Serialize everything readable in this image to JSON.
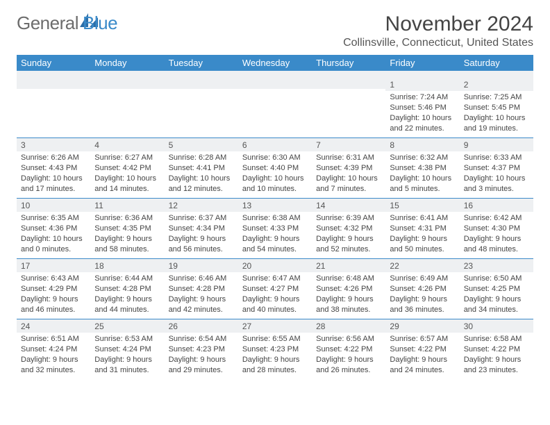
{
  "brand": {
    "part1": "General",
    "part2": "Blue",
    "logo_color": "#2b6ea8"
  },
  "header": {
    "month_title": "November 2024",
    "location": "Collinsville, Connecticut, United States"
  },
  "colors": {
    "header_bar": "#3a8ac9",
    "band": "#eef0f2",
    "rule": "#3a8ac9",
    "text": "#444444"
  },
  "weekdays": [
    "Sunday",
    "Monday",
    "Tuesday",
    "Wednesday",
    "Thursday",
    "Friday",
    "Saturday"
  ],
  "weeks": [
    [
      {
        "n": "",
        "lines": []
      },
      {
        "n": "",
        "lines": []
      },
      {
        "n": "",
        "lines": []
      },
      {
        "n": "",
        "lines": []
      },
      {
        "n": "",
        "lines": []
      },
      {
        "n": "1",
        "lines": [
          "Sunrise: 7:24 AM",
          "Sunset: 5:46 PM",
          "Daylight: 10 hours",
          "and 22 minutes."
        ]
      },
      {
        "n": "2",
        "lines": [
          "Sunrise: 7:25 AM",
          "Sunset: 5:45 PM",
          "Daylight: 10 hours",
          "and 19 minutes."
        ]
      }
    ],
    [
      {
        "n": "3",
        "lines": [
          "Sunrise: 6:26 AM",
          "Sunset: 4:43 PM",
          "Daylight: 10 hours",
          "and 17 minutes."
        ]
      },
      {
        "n": "4",
        "lines": [
          "Sunrise: 6:27 AM",
          "Sunset: 4:42 PM",
          "Daylight: 10 hours",
          "and 14 minutes."
        ]
      },
      {
        "n": "5",
        "lines": [
          "Sunrise: 6:28 AM",
          "Sunset: 4:41 PM",
          "Daylight: 10 hours",
          "and 12 minutes."
        ]
      },
      {
        "n": "6",
        "lines": [
          "Sunrise: 6:30 AM",
          "Sunset: 4:40 PM",
          "Daylight: 10 hours",
          "and 10 minutes."
        ]
      },
      {
        "n": "7",
        "lines": [
          "Sunrise: 6:31 AM",
          "Sunset: 4:39 PM",
          "Daylight: 10 hours",
          "and 7 minutes."
        ]
      },
      {
        "n": "8",
        "lines": [
          "Sunrise: 6:32 AM",
          "Sunset: 4:38 PM",
          "Daylight: 10 hours",
          "and 5 minutes."
        ]
      },
      {
        "n": "9",
        "lines": [
          "Sunrise: 6:33 AM",
          "Sunset: 4:37 PM",
          "Daylight: 10 hours",
          "and 3 minutes."
        ]
      }
    ],
    [
      {
        "n": "10",
        "lines": [
          "Sunrise: 6:35 AM",
          "Sunset: 4:36 PM",
          "Daylight: 10 hours",
          "and 0 minutes."
        ]
      },
      {
        "n": "11",
        "lines": [
          "Sunrise: 6:36 AM",
          "Sunset: 4:35 PM",
          "Daylight: 9 hours",
          "and 58 minutes."
        ]
      },
      {
        "n": "12",
        "lines": [
          "Sunrise: 6:37 AM",
          "Sunset: 4:34 PM",
          "Daylight: 9 hours",
          "and 56 minutes."
        ]
      },
      {
        "n": "13",
        "lines": [
          "Sunrise: 6:38 AM",
          "Sunset: 4:33 PM",
          "Daylight: 9 hours",
          "and 54 minutes."
        ]
      },
      {
        "n": "14",
        "lines": [
          "Sunrise: 6:39 AM",
          "Sunset: 4:32 PM",
          "Daylight: 9 hours",
          "and 52 minutes."
        ]
      },
      {
        "n": "15",
        "lines": [
          "Sunrise: 6:41 AM",
          "Sunset: 4:31 PM",
          "Daylight: 9 hours",
          "and 50 minutes."
        ]
      },
      {
        "n": "16",
        "lines": [
          "Sunrise: 6:42 AM",
          "Sunset: 4:30 PM",
          "Daylight: 9 hours",
          "and 48 minutes."
        ]
      }
    ],
    [
      {
        "n": "17",
        "lines": [
          "Sunrise: 6:43 AM",
          "Sunset: 4:29 PM",
          "Daylight: 9 hours",
          "and 46 minutes."
        ]
      },
      {
        "n": "18",
        "lines": [
          "Sunrise: 6:44 AM",
          "Sunset: 4:28 PM",
          "Daylight: 9 hours",
          "and 44 minutes."
        ]
      },
      {
        "n": "19",
        "lines": [
          "Sunrise: 6:46 AM",
          "Sunset: 4:28 PM",
          "Daylight: 9 hours",
          "and 42 minutes."
        ]
      },
      {
        "n": "20",
        "lines": [
          "Sunrise: 6:47 AM",
          "Sunset: 4:27 PM",
          "Daylight: 9 hours",
          "and 40 minutes."
        ]
      },
      {
        "n": "21",
        "lines": [
          "Sunrise: 6:48 AM",
          "Sunset: 4:26 PM",
          "Daylight: 9 hours",
          "and 38 minutes."
        ]
      },
      {
        "n": "22",
        "lines": [
          "Sunrise: 6:49 AM",
          "Sunset: 4:26 PM",
          "Daylight: 9 hours",
          "and 36 minutes."
        ]
      },
      {
        "n": "23",
        "lines": [
          "Sunrise: 6:50 AM",
          "Sunset: 4:25 PM",
          "Daylight: 9 hours",
          "and 34 minutes."
        ]
      }
    ],
    [
      {
        "n": "24",
        "lines": [
          "Sunrise: 6:51 AM",
          "Sunset: 4:24 PM",
          "Daylight: 9 hours",
          "and 32 minutes."
        ]
      },
      {
        "n": "25",
        "lines": [
          "Sunrise: 6:53 AM",
          "Sunset: 4:24 PM",
          "Daylight: 9 hours",
          "and 31 minutes."
        ]
      },
      {
        "n": "26",
        "lines": [
          "Sunrise: 6:54 AM",
          "Sunset: 4:23 PM",
          "Daylight: 9 hours",
          "and 29 minutes."
        ]
      },
      {
        "n": "27",
        "lines": [
          "Sunrise: 6:55 AM",
          "Sunset: 4:23 PM",
          "Daylight: 9 hours",
          "and 28 minutes."
        ]
      },
      {
        "n": "28",
        "lines": [
          "Sunrise: 6:56 AM",
          "Sunset: 4:22 PM",
          "Daylight: 9 hours",
          "and 26 minutes."
        ]
      },
      {
        "n": "29",
        "lines": [
          "Sunrise: 6:57 AM",
          "Sunset: 4:22 PM",
          "Daylight: 9 hours",
          "and 24 minutes."
        ]
      },
      {
        "n": "30",
        "lines": [
          "Sunrise: 6:58 AM",
          "Sunset: 4:22 PM",
          "Daylight: 9 hours",
          "and 23 minutes."
        ]
      }
    ]
  ]
}
